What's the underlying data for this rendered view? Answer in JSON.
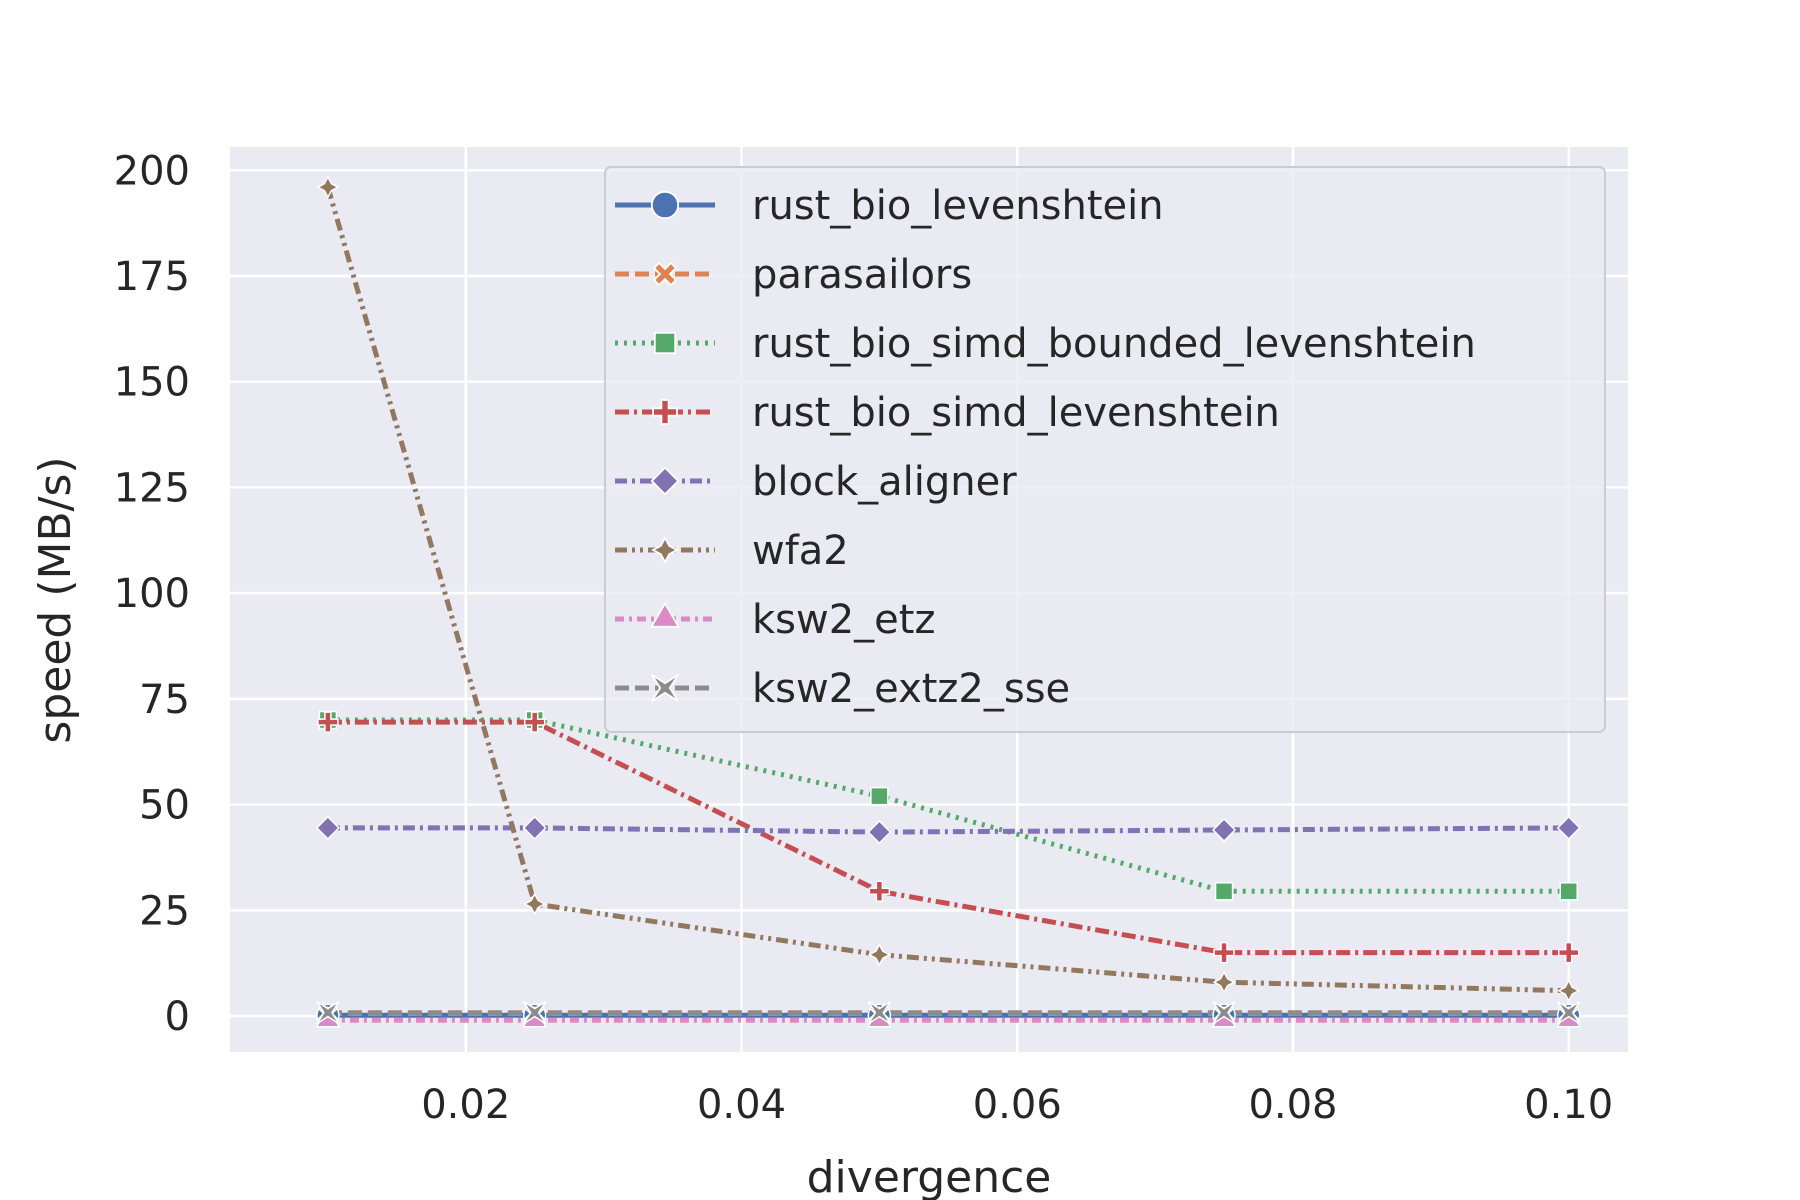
{
  "chart_data": {
    "type": "line",
    "title": "",
    "xlabel": "divergence",
    "ylabel": "speed (MB/s)",
    "x": [
      0.01,
      0.025,
      0.05,
      0.075,
      0.1
    ],
    "xlim": [
      0.0029,
      0.1043
    ],
    "ylim": [
      -8.5,
      205.5
    ],
    "xticks": [
      0.02,
      0.04,
      0.06,
      0.08,
      0.1
    ],
    "xtick_labels": [
      "0.02",
      "0.04",
      "0.06",
      "0.08",
      "0.10"
    ],
    "yticks": [
      0,
      25,
      50,
      75,
      100,
      125,
      150,
      175,
      200
    ],
    "ytick_labels": [
      "0",
      "25",
      "50",
      "75",
      "100",
      "125",
      "150",
      "175",
      "200"
    ],
    "grid": true,
    "legend_position": "top-right",
    "series": [
      {
        "name": "rust_bio_levenshtein",
        "color": "#4c72b0",
        "dash": "solid",
        "marker": "circle",
        "values": [
          0.2,
          0.2,
          0.2,
          0.2,
          0.2
        ]
      },
      {
        "name": "parasailors",
        "color": "#dd8452",
        "dash": "dashed",
        "marker": "x-filled",
        "values": [
          0.6,
          0.6,
          0.6,
          0.6,
          0.6
        ]
      },
      {
        "name": "rust_bio_simd_bounded_levenshtein",
        "color": "#55a868",
        "dash": "dotted",
        "marker": "square",
        "values": [
          70,
          70,
          52,
          29.5,
          29.5
        ]
      },
      {
        "name": "rust_bio_simd_levenshtein",
        "color": "#c44e52",
        "dash": "dashdot-long",
        "marker": "plus-filled",
        "values": [
          69.5,
          69.5,
          29.5,
          15,
          15
        ]
      },
      {
        "name": "block_aligner",
        "color": "#8172b3",
        "dash": "dashdot",
        "marker": "diamond",
        "values": [
          44.5,
          44.5,
          43.5,
          44,
          44.5
        ]
      },
      {
        "name": "wfa2",
        "color": "#937860",
        "dash": "dashdotdot",
        "marker": "thin-diamond",
        "values": [
          196,
          26.5,
          14.5,
          8,
          6
        ]
      },
      {
        "name": "ksw2_etz",
        "color": "#da8bc3",
        "dash": "dashdot-short",
        "marker": "triangle",
        "values": [
          -1,
          -1,
          -1,
          -1,
          -1
        ]
      },
      {
        "name": "ksw2_extz2_sse",
        "color": "#8c8c8c",
        "dash": "dashed",
        "marker": "x-star",
        "values": [
          0.8,
          0.8,
          0.8,
          0.8,
          0.8
        ]
      }
    ]
  }
}
